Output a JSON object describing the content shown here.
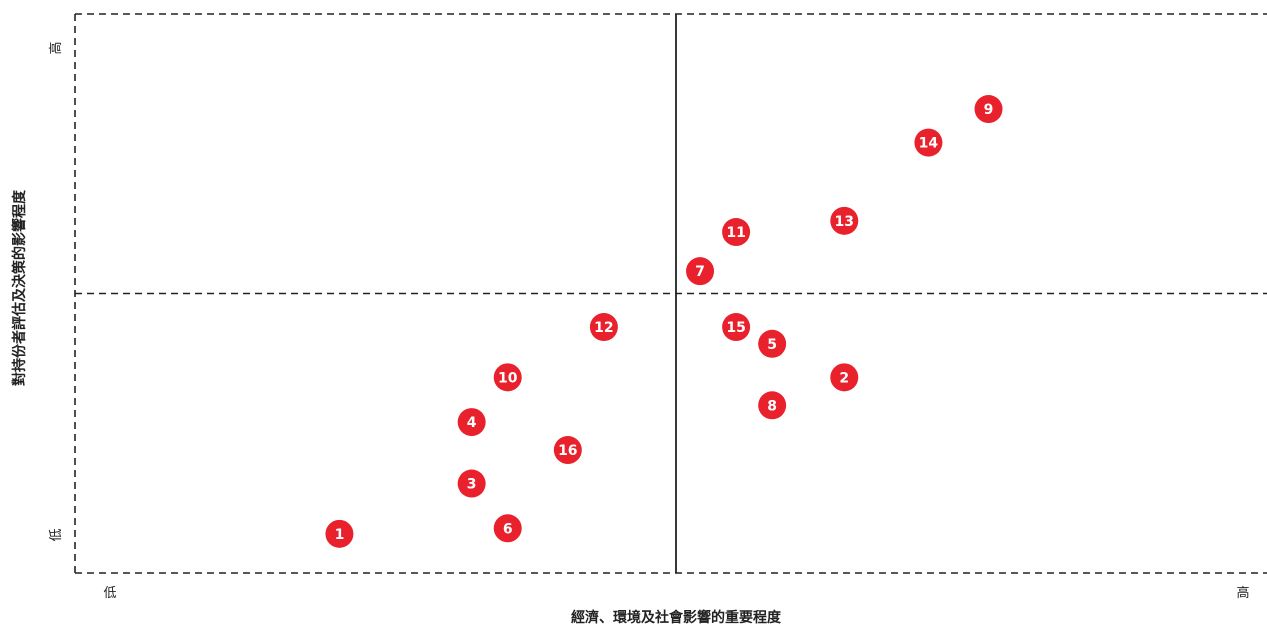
{
  "chart_data": {
    "type": "scatter",
    "title": "",
    "xlabel": "經濟、環境及社會影響的重要程度",
    "ylabel": "對持份者評估及決策的影響程度",
    "x_tick_labels": {
      "low": "低",
      "high": "高"
    },
    "y_tick_labels": {
      "low": "低",
      "high": "高"
    },
    "xlim": [
      0,
      10
    ],
    "ylim": [
      0,
      10
    ],
    "grid": false,
    "legend": "none",
    "marker_color": "#e8212c",
    "quadrant_divider": {
      "x": 5,
      "y": 5
    },
    "points": [
      {
        "label": "1",
        "x": 2.2,
        "y": 0.7
      },
      {
        "label": "2",
        "x": 6.4,
        "y": 3.5
      },
      {
        "label": "3",
        "x": 3.3,
        "y": 1.6
      },
      {
        "label": "4",
        "x": 3.3,
        "y": 2.7
      },
      {
        "label": "5",
        "x": 5.8,
        "y": 4.1
      },
      {
        "label": "6",
        "x": 3.6,
        "y": 0.8
      },
      {
        "label": "7",
        "x": 5.2,
        "y": 5.4
      },
      {
        "label": "8",
        "x": 5.8,
        "y": 3.0
      },
      {
        "label": "9",
        "x": 7.6,
        "y": 8.3
      },
      {
        "label": "10",
        "x": 3.6,
        "y": 3.5
      },
      {
        "label": "11",
        "x": 5.5,
        "y": 6.1
      },
      {
        "label": "12",
        "x": 4.4,
        "y": 4.4
      },
      {
        "label": "13",
        "x": 6.4,
        "y": 6.3
      },
      {
        "label": "14",
        "x": 7.1,
        "y": 7.7
      },
      {
        "label": "15",
        "x": 5.5,
        "y": 4.4
      },
      {
        "label": "16",
        "x": 4.1,
        "y": 2.2
      }
    ]
  }
}
